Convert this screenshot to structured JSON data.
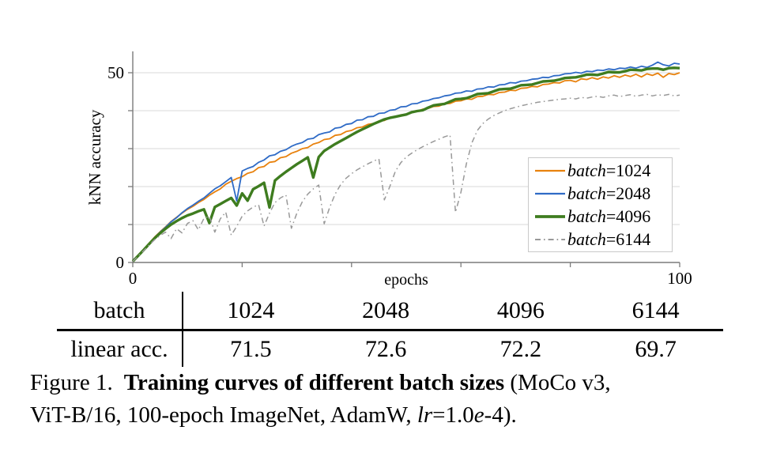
{
  "figure": {
    "caption": {
      "line1": {
        "figure_label": "Figure 1.",
        "bold": "Training curves of different batch sizes",
        "tail": " (MoCo v3,"
      },
      "line2": {
        "pre": "ViT-B/16, 100-epoch ImageNet, AdamW, ",
        "lr_italic": "lr",
        "eq": "=1.0",
        "e_italic": "e",
        "tail": "-4)."
      }
    },
    "table": {
      "row1_label": "batch",
      "row2_label": "linear acc.",
      "batch_sizes": [
        "1024",
        "2048",
        "4096",
        "6144"
      ],
      "linear_acc": [
        "71.5",
        "72.6",
        "72.2",
        "69.7"
      ]
    }
  },
  "chart_data": {
    "type": "line",
    "title": "",
    "xlabel": "epochs",
    "ylabel": "kNN accuracy",
    "xlim": [
      0,
      100
    ],
    "ylim": [
      0,
      55.6
    ],
    "x_ticks": [
      0,
      20,
      40,
      60,
      80,
      100
    ],
    "y_ticks": [
      0,
      10,
      20,
      30,
      40,
      50
    ],
    "x_tick_labels": [
      {
        "value": 0,
        "label": "0"
      },
      {
        "value": 100,
        "label": "100"
      }
    ],
    "y_tick_labels": [
      {
        "value": 0,
        "label": "0"
      },
      {
        "value": 50,
        "label": "50"
      }
    ],
    "grid": "horizontal",
    "legend_position": "lower-right-inside",
    "x": [
      0,
      1,
      2,
      3,
      4,
      5,
      6,
      7,
      8,
      9,
      10,
      11,
      12,
      13,
      14,
      15,
      16,
      17,
      18,
      19,
      20,
      21,
      22,
      23,
      24,
      25,
      26,
      27,
      28,
      29,
      30,
      31,
      32,
      33,
      34,
      35,
      36,
      37,
      38,
      39,
      40,
      41,
      42,
      43,
      44,
      45,
      46,
      47,
      48,
      49,
      50,
      51,
      52,
      53,
      54,
      55,
      56,
      57,
      58,
      59,
      60,
      61,
      62,
      63,
      64,
      65,
      66,
      67,
      68,
      69,
      70,
      71,
      72,
      73,
      74,
      75,
      76,
      77,
      78,
      79,
      80,
      81,
      82,
      83,
      84,
      85,
      86,
      87,
      88,
      89,
      90,
      91,
      92,
      93,
      94,
      95,
      96,
      97,
      98,
      99,
      100
    ],
    "series": [
      {
        "name": "batch=1024",
        "legend_var": "batch",
        "legend_value": "=1024",
        "color": "#e8820e",
        "line_width": 1.8,
        "dash": null,
        "y": [
          0.3,
          1.9,
          3.5,
          5.1,
          6.7,
          8.1,
          9.4,
          10.8,
          11.9,
          13.0,
          14.0,
          14.8,
          15.8,
          16.6,
          17.7,
          18.6,
          19.4,
          20.6,
          21.4,
          22.1,
          22.6,
          23.5,
          23.9,
          25.0,
          25.3,
          26.4,
          26.6,
          27.6,
          27.9,
          28.8,
          29.3,
          30.0,
          30.3,
          31.2,
          31.6,
          32.4,
          32.6,
          33.5,
          33.7,
          34.5,
          34.8,
          35.5,
          35.7,
          36.4,
          36.6,
          37.3,
          37.4,
          38.1,
          38.3,
          38.9,
          39.0,
          39.7,
          39.8,
          40.4,
          40.6,
          41.1,
          41.2,
          41.8,
          41.9,
          42.5,
          42.6,
          43.1,
          43.0,
          43.7,
          43.8,
          44.3,
          44.2,
          44.8,
          44.9,
          45.4,
          45.3,
          45.9,
          46.0,
          46.4,
          46.3,
          46.9,
          47.0,
          47.4,
          47.3,
          47.9,
          48.0,
          47.6,
          48.4,
          48.2,
          48.7,
          48.3,
          48.9,
          48.6,
          49.2,
          48.8,
          49.4,
          49.0,
          49.6,
          48.9,
          49.7,
          49.3,
          49.9,
          48.8,
          49.8,
          49.5,
          50.0
        ]
      },
      {
        "name": "batch=2048",
        "legend_var": "batch",
        "legend_value": "=2048",
        "color": "#2f6bc6",
        "line_width": 1.8,
        "dash": null,
        "y": [
          0.3,
          1.8,
          3.4,
          5.0,
          6.6,
          8.0,
          9.3,
          10.7,
          11.8,
          13.1,
          14.2,
          15.1,
          16.1,
          17.0,
          18.2,
          19.4,
          20.2,
          21.3,
          22.4,
          16.2,
          24.1,
          24.8,
          25.3,
          26.4,
          27.0,
          28.1,
          28.4,
          29.3,
          29.7,
          30.6,
          31.2,
          31.6,
          32.5,
          32.7,
          33.7,
          34.1,
          34.4,
          35.4,
          35.6,
          36.4,
          36.6,
          37.5,
          37.6,
          38.4,
          38.5,
          39.3,
          39.4,
          40.1,
          40.3,
          41.0,
          41.1,
          41.8,
          41.9,
          42.5,
          42.7,
          43.2,
          43.4,
          43.9,
          44.1,
          44.6,
          44.7,
          45.2,
          45.1,
          45.7,
          45.8,
          46.3,
          46.2,
          46.8,
          46.9,
          47.4,
          47.3,
          47.8,
          47.9,
          48.3,
          48.4,
          48.8,
          48.7,
          49.2,
          49.3,
          49.7,
          49.8,
          50.1,
          49.9,
          50.4,
          50.3,
          50.7,
          50.6,
          51.0,
          50.8,
          51.2,
          51.1,
          51.5,
          51.2,
          51.7,
          51.4,
          52.0,
          52.8,
          52.1,
          51.8,
          52.5,
          52.3
        ]
      },
      {
        "name": "batch=4096",
        "legend_var": "batch",
        "legend_value": "=4096",
        "color": "#3e7c1f",
        "line_width": 3.4,
        "dash": null,
        "y": [
          0.3,
          1.8,
          3.3,
          4.9,
          6.4,
          7.7,
          8.9,
          10.0,
          10.9,
          11.7,
          12.4,
          12.9,
          13.5,
          14.0,
          10.4,
          14.6,
          15.4,
          16.2,
          17.0,
          15.0,
          18.2,
          16.3,
          19.3,
          20.1,
          21.0,
          14.5,
          21.6,
          22.8,
          23.9,
          24.9,
          25.9,
          26.8,
          27.7,
          22.4,
          27.8,
          29.4,
          30.3,
          31.2,
          32.0,
          32.8,
          33.6,
          34.4,
          35.1,
          35.8,
          36.5,
          37.1,
          37.7,
          38.1,
          38.4,
          38.7,
          39.0,
          39.6,
          39.9,
          40.1,
          40.8,
          41.4,
          41.6,
          41.8,
          42.4,
          43.0,
          43.1,
          43.3,
          43.8,
          44.4,
          44.5,
          44.6,
          45.1,
          45.6,
          45.7,
          45.8,
          46.2,
          46.7,
          46.8,
          46.9,
          47.3,
          47.7,
          47.8,
          47.9,
          48.2,
          48.6,
          48.7,
          48.8,
          49.1,
          49.5,
          49.5,
          49.4,
          49.8,
          50.2,
          50.1,
          50.1,
          50.4,
          50.8,
          50.7,
          50.6,
          51.0,
          51.1,
          51.1,
          50.8,
          51.2,
          51.3,
          51.2
        ]
      },
      {
        "name": "batch=6144",
        "legend_var": "batch",
        "legend_value": "=6144",
        "color": "#999999",
        "line_width": 1.5,
        "dash": "7 4 1.6 4",
        "y": [
          0.3,
          1.7,
          3.1,
          4.6,
          6.0,
          7.1,
          8.0,
          6.3,
          8.9,
          7.8,
          10.3,
          11.0,
          8.6,
          11.6,
          12.2,
          8.0,
          11.5,
          13.3,
          7.2,
          9.5,
          12.2,
          13.6,
          14.6,
          15.2,
          9.6,
          13.0,
          15.8,
          17.0,
          17.8,
          9.0,
          13.0,
          16.0,
          18.0,
          19.4,
          20.4,
          10.2,
          14.5,
          18.0,
          20.5,
          22.2,
          23.4,
          24.4,
          25.2,
          26.0,
          26.7,
          27.3,
          16.5,
          20.0,
          24.0,
          26.3,
          27.8,
          28.8,
          29.7,
          30.5,
          31.2,
          31.9,
          32.5,
          33.1,
          33.6,
          13.2,
          18.5,
          26.0,
          31.5,
          34.8,
          36.6,
          37.8,
          38.7,
          39.4,
          40.0,
          40.5,
          40.9,
          41.3,
          41.6,
          41.9,
          42.2,
          42.4,
          42.6,
          42.8,
          43.0,
          43.1,
          43.3,
          43.1,
          43.5,
          43.3,
          43.6,
          43.8,
          43.5,
          43.9,
          44.1,
          43.7,
          44.0,
          44.2,
          43.8,
          44.1,
          44.3,
          43.9,
          44.2,
          44.0,
          44.3,
          43.9,
          44.1
        ]
      }
    ]
  }
}
